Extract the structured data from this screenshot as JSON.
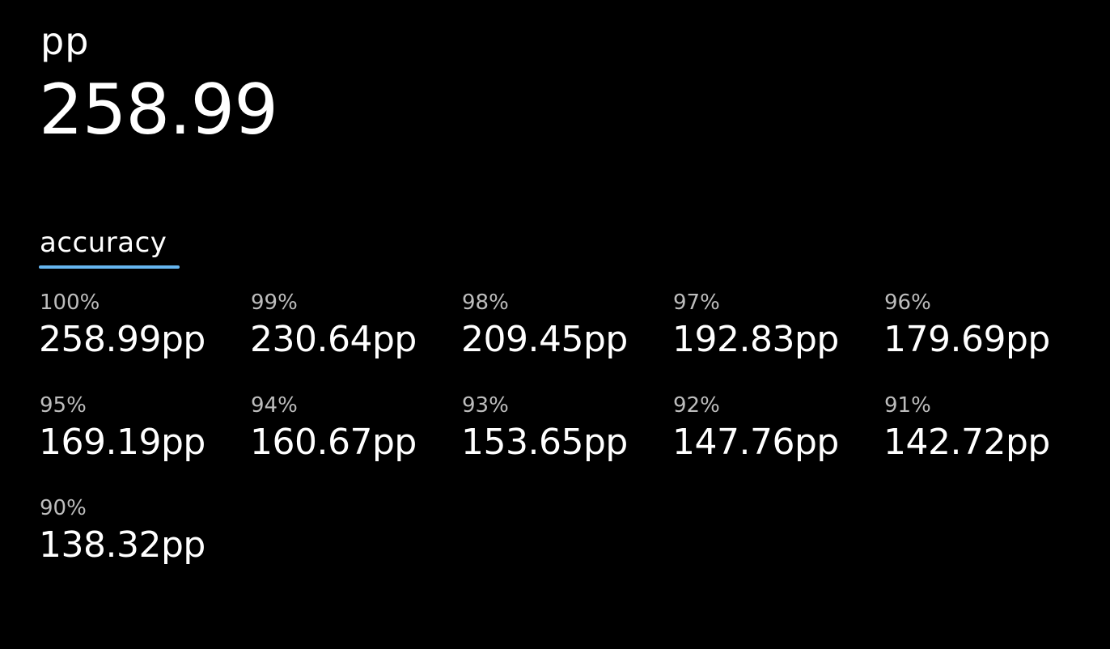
{
  "header": {
    "unit_label": "pp",
    "total_value": "258.99"
  },
  "tabs": [
    {
      "label": "accuracy",
      "active": true
    }
  ],
  "accent_color": "#66b6f0",
  "accuracy_table": [
    {
      "accuracy": "100%",
      "pp": "258.99pp"
    },
    {
      "accuracy": "99%",
      "pp": "230.64pp"
    },
    {
      "accuracy": "98%",
      "pp": "209.45pp"
    },
    {
      "accuracy": "97%",
      "pp": "192.83pp"
    },
    {
      "accuracy": "96%",
      "pp": "179.69pp"
    },
    {
      "accuracy": "95%",
      "pp": "169.19pp"
    },
    {
      "accuracy": "94%",
      "pp": "160.67pp"
    },
    {
      "accuracy": "93%",
      "pp": "153.65pp"
    },
    {
      "accuracy": "92%",
      "pp": "147.76pp"
    },
    {
      "accuracy": "91%",
      "pp": "142.72pp"
    },
    {
      "accuracy": "90%",
      "pp": "138.32pp"
    }
  ]
}
